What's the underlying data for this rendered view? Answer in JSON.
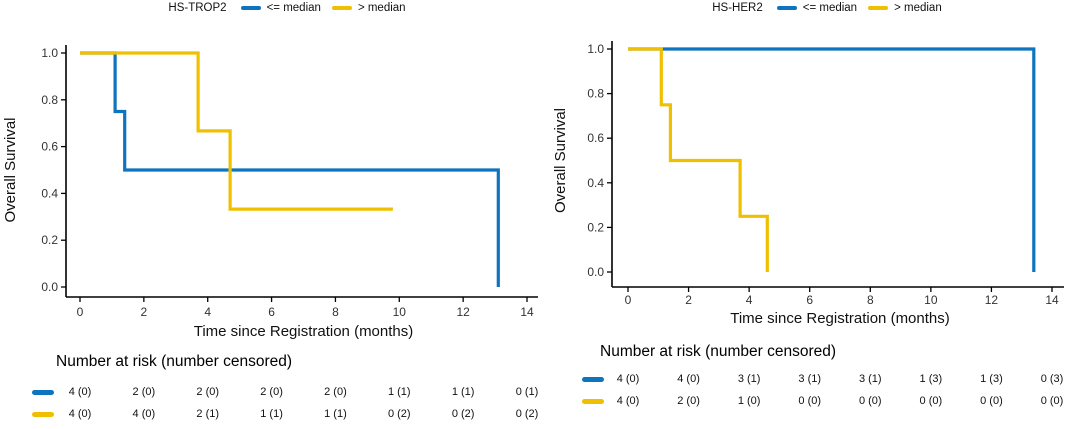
{
  "figure": {
    "background_color": "#ffffff",
    "text_color": "#111111"
  },
  "chart_data": [
    {
      "type": "line",
      "subtype": "kaplan-meier-step-survival",
      "title": "HS-TROP2",
      "xlabel": "Time since Registration (months)",
      "ylabel": "Overall Survival",
      "xlim": [
        0,
        14
      ],
      "ylim": [
        0.0,
        1.0
      ],
      "xticks": [
        0,
        2,
        4,
        6,
        8,
        10,
        12,
        14
      ],
      "ytick_labels": [
        "0.0",
        "0.2",
        "0.4",
        "0.6",
        "0.8",
        "1.0"
      ],
      "grid": false,
      "legend_position": "top",
      "series": [
        {
          "label": "<= median",
          "color": "#0F74BE",
          "step_points": [
            [
              0,
              1.0
            ],
            [
              1.1,
              1.0
            ],
            [
              1.1,
              0.75
            ],
            [
              1.4,
              0.75
            ],
            [
              1.4,
              0.5
            ],
            [
              13.1,
              0.5
            ],
            [
              13.1,
              0.0
            ]
          ]
        },
        {
          "label": "> median",
          "color": "#EFC000",
          "step_points": [
            [
              0,
              1.0
            ],
            [
              3.7,
              1.0
            ],
            [
              3.7,
              0.667
            ],
            [
              4.7,
              0.667
            ],
            [
              4.7,
              0.333
            ],
            [
              9.8,
              0.333
            ]
          ]
        }
      ],
      "risk_table": {
        "title": "Number at risk (number censored)",
        "times": [
          0,
          2,
          4,
          6,
          8,
          10,
          12,
          14
        ],
        "rows": [
          {
            "label": "<= median",
            "color": "#0F74BE",
            "values": [
              "4 (0)",
              "2 (0)",
              "2 (0)",
              "2 (0)",
              "2 (0)",
              "1 (1)",
              "1 (1)",
              "0 (1)"
            ]
          },
          {
            "label": "> median",
            "color": "#EFC000",
            "values": [
              "4 (0)",
              "4 (0)",
              "2 (1)",
              "1 (1)",
              "1 (1)",
              "0 (2)",
              "0 (2)",
              "0 (2)"
            ]
          }
        ]
      }
    },
    {
      "type": "line",
      "subtype": "kaplan-meier-step-survival",
      "title": "HS-HER2",
      "xlabel": "Time since Registration (months)",
      "ylabel": "Overall Survival",
      "xlim": [
        0,
        14
      ],
      "ylim": [
        0.0,
        1.0
      ],
      "xticks": [
        0,
        2,
        4,
        6,
        8,
        10,
        12,
        14
      ],
      "ytick_labels": [
        "0.0",
        "0.2",
        "0.4",
        "0.6",
        "0.8",
        "1.0"
      ],
      "grid": false,
      "legend_position": "top",
      "series": [
        {
          "label": "<= median",
          "color": "#0F74BE",
          "step_points": [
            [
              0,
              1.0
            ],
            [
              13.4,
              1.0
            ],
            [
              13.4,
              0.0
            ]
          ]
        },
        {
          "label": "> median",
          "color": "#EFC000",
          "step_points": [
            [
              0,
              1.0
            ],
            [
              1.1,
              1.0
            ],
            [
              1.1,
              0.75
            ],
            [
              1.4,
              0.75
            ],
            [
              1.4,
              0.5
            ],
            [
              3.7,
              0.5
            ],
            [
              3.7,
              0.25
            ],
            [
              4.6,
              0.25
            ],
            [
              4.6,
              0.0
            ]
          ]
        }
      ],
      "risk_table": {
        "title": "Number at risk (number censored)",
        "times": [
          0,
          2,
          4,
          6,
          8,
          10,
          12,
          14
        ],
        "rows": [
          {
            "label": "<= median",
            "color": "#0F74BE",
            "values": [
              "4 (0)",
              "4 (0)",
              "3 (1)",
              "3 (1)",
              "3 (1)",
              "1 (3)",
              "1 (3)",
              "0 (3)"
            ]
          },
          {
            "label": "> median",
            "color": "#EFC000",
            "values": [
              "4 (0)",
              "2 (0)",
              "1 (0)",
              "0 (0)",
              "0 (0)",
              "0 (0)",
              "0 (0)",
              "0 (0)"
            ]
          }
        ]
      }
    }
  ]
}
